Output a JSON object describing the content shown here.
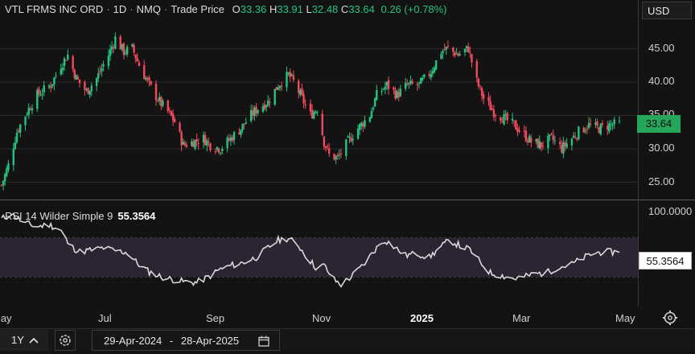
{
  "legend": {
    "symbol": "VTL FRMS INC ORD",
    "interval": "1D",
    "exchange": "NMQ",
    "price_type": "Trade Price",
    "open_label": "O",
    "open": "33.36",
    "high_label": "H",
    "high": "33.91",
    "low_label": "L",
    "low": "32.48",
    "close_label": "C",
    "close": "33.64",
    "change": "0.26 (+0.78%)"
  },
  "currency": "USD",
  "price_axis_ticks": [
    "45.00",
    "40.00",
    "35.00",
    "30.00",
    "25.00"
  ],
  "last_price": "33.64",
  "rsi": {
    "label": "RSI 14 Wilder Simple 9",
    "value": "55.3564",
    "axis_top": "100.0000",
    "tag": "55.3564"
  },
  "x_ticks": [
    {
      "label": "May",
      "bold": false
    },
    {
      "label": "Jul",
      "bold": false
    },
    {
      "label": "Sep",
      "bold": false
    },
    {
      "label": "Nov",
      "bold": false
    },
    {
      "label": "2025",
      "bold": true
    },
    {
      "label": "Mar",
      "bold": false
    },
    {
      "label": "May",
      "bold": false
    }
  ],
  "toolbar": {
    "range": "1Y",
    "date_from": "29-Apr-2024",
    "date_sep": "-",
    "date_to": "28-Apr-2025"
  },
  "colors": {
    "up": "#26c281",
    "down": "#f2495c",
    "rsi_line": "#d9d9d9",
    "rsi_band": "#2a2433",
    "grid": "#2a2a2a"
  },
  "chart_data": [
    {
      "type": "candlestick",
      "title": "VTL FRMS INC ORD · 1D · NMQ · Trade Price",
      "ylim": [
        22,
        48
      ],
      "x_range": [
        "2024-04-29",
        "2025-04-28"
      ],
      "path_points_close": [
        [
          "2024-04-29",
          24.5
        ],
        [
          "2024-05-03",
          27.5
        ],
        [
          "2024-05-08",
          32.5
        ],
        [
          "2024-05-14",
          35.5
        ],
        [
          "2024-05-20",
          38.0
        ],
        [
          "2024-05-28",
          39.5
        ],
        [
          "2024-06-03",
          42.5
        ],
        [
          "2024-06-07",
          44.0
        ],
        [
          "2024-06-12",
          40.5
        ],
        [
          "2024-06-18",
          38.5
        ],
        [
          "2024-06-24",
          40.5
        ],
        [
          "2024-07-01",
          44.0
        ],
        [
          "2024-07-05",
          46.5
        ],
        [
          "2024-07-10",
          44.5
        ],
        [
          "2024-07-15",
          45.0
        ],
        [
          "2024-07-19",
          42.5
        ],
        [
          "2024-07-25",
          39.5
        ],
        [
          "2024-07-31",
          37.0
        ],
        [
          "2024-08-05",
          35.5
        ],
        [
          "2024-08-09",
          34.0
        ],
        [
          "2024-08-14",
          30.5
        ],
        [
          "2024-08-20",
          31.0
        ],
        [
          "2024-08-26",
          31.5
        ],
        [
          "2024-08-30",
          30.5
        ],
        [
          "2024-09-05",
          30.0
        ],
        [
          "2024-09-11",
          31.5
        ],
        [
          "2024-09-17",
          33.0
        ],
        [
          "2024-09-23",
          35.0
        ],
        [
          "2024-09-27",
          36.0
        ],
        [
          "2024-10-03",
          37.0
        ],
        [
          "2024-10-09",
          39.5
        ],
        [
          "2024-10-15",
          41.0
        ],
        [
          "2024-10-18",
          40.0
        ],
        [
          "2024-10-23",
          37.5
        ],
        [
          "2024-10-28",
          35.0
        ],
        [
          "2024-11-01",
          36.0
        ],
        [
          "2024-11-05",
          31.0
        ],
        [
          "2024-11-08",
          29.0
        ],
        [
          "2024-11-13",
          28.5
        ],
        [
          "2024-11-19",
          31.0
        ],
        [
          "2024-11-25",
          33.0
        ],
        [
          "2024-12-02",
          35.0
        ],
        [
          "2024-12-06",
          38.0
        ],
        [
          "2024-12-12",
          39.5
        ],
        [
          "2024-12-18",
          38.0
        ],
        [
          "2024-12-24",
          39.5
        ],
        [
          "2024-12-31",
          39.5
        ],
        [
          "2025-01-07",
          41.5
        ],
        [
          "2025-01-13",
          44.5
        ],
        [
          "2025-01-17",
          45.0
        ],
        [
          "2025-01-23",
          44.0
        ],
        [
          "2025-01-29",
          45.0
        ],
        [
          "2025-02-03",
          40.0
        ],
        [
          "2025-02-07",
          37.5
        ],
        [
          "2025-02-13",
          35.5
        ],
        [
          "2025-02-19",
          34.5
        ],
        [
          "2025-02-25",
          33.5
        ],
        [
          "2025-03-03",
          32.0
        ],
        [
          "2025-03-07",
          31.0
        ],
        [
          "2025-03-13",
          30.5
        ],
        [
          "2025-03-19",
          31.5
        ],
        [
          "2025-03-25",
          30.0
        ],
        [
          "2025-03-31",
          31.5
        ],
        [
          "2025-04-04",
          32.5
        ],
        [
          "2025-04-10",
          33.5
        ],
        [
          "2025-04-16",
          33.0
        ],
        [
          "2025-04-22",
          33.5
        ],
        [
          "2025-04-28",
          33.64
        ]
      ],
      "last": {
        "open": 33.36,
        "high": 33.91,
        "low": 32.48,
        "close": 33.64,
        "change": 0.26,
        "change_pct": 0.78
      }
    },
    {
      "type": "line",
      "title": "RSI 14 Wilder Simple 9",
      "ylim": [
        0,
        100
      ],
      "bands": [
        30,
        70
      ],
      "x_range": [
        "2024-04-29",
        "2025-04-28"
      ],
      "values_path": [
        [
          "2024-04-29",
          90
        ],
        [
          "2024-05-05",
          95
        ],
        [
          "2024-05-12",
          86
        ],
        [
          "2024-05-20",
          82
        ],
        [
          "2024-05-27",
          84
        ],
        [
          "2024-06-03",
          78
        ],
        [
          "2024-06-08",
          62
        ],
        [
          "2024-06-14",
          56
        ],
        [
          "2024-06-22",
          58
        ],
        [
          "2024-06-28",
          60
        ],
        [
          "2024-07-05",
          57
        ],
        [
          "2024-07-12",
          55
        ],
        [
          "2024-07-18",
          44
        ],
        [
          "2024-07-25",
          35
        ],
        [
          "2024-08-01",
          30
        ],
        [
          "2024-08-08",
          27
        ],
        [
          "2024-08-14",
          25
        ],
        [
          "2024-08-22",
          24
        ],
        [
          "2024-08-29",
          30
        ],
        [
          "2024-09-05",
          38
        ],
        [
          "2024-09-12",
          42
        ],
        [
          "2024-09-19",
          45
        ],
        [
          "2024-09-26",
          50
        ],
        [
          "2024-10-03",
          60
        ],
        [
          "2024-10-09",
          68
        ],
        [
          "2024-10-15",
          70
        ],
        [
          "2024-10-21",
          62
        ],
        [
          "2024-10-27",
          48
        ],
        [
          "2024-11-01",
          38
        ],
        [
          "2024-11-05",
          42
        ],
        [
          "2024-11-10",
          28
        ],
        [
          "2024-11-15",
          22
        ],
        [
          "2024-11-21",
          30
        ],
        [
          "2024-11-28",
          42
        ],
        [
          "2024-12-05",
          58
        ],
        [
          "2024-12-11",
          68
        ],
        [
          "2024-12-17",
          60
        ],
        [
          "2024-12-23",
          52
        ],
        [
          "2024-12-30",
          54
        ],
        [
          "2025-01-06",
          50
        ],
        [
          "2025-01-12",
          60
        ],
        [
          "2025-01-18",
          68
        ],
        [
          "2025-01-24",
          62
        ],
        [
          "2025-01-30",
          58
        ],
        [
          "2025-02-05",
          45
        ],
        [
          "2025-02-11",
          34
        ],
        [
          "2025-02-18",
          31
        ],
        [
          "2025-02-25",
          28
        ],
        [
          "2025-03-03",
          30
        ],
        [
          "2025-03-09",
          33
        ],
        [
          "2025-03-16",
          34
        ],
        [
          "2025-03-23",
          40
        ],
        [
          "2025-03-30",
          42
        ],
        [
          "2025-04-05",
          48
        ],
        [
          "2025-04-12",
          54
        ],
        [
          "2025-04-19",
          56
        ],
        [
          "2025-04-28",
          55.3564
        ]
      ]
    }
  ]
}
